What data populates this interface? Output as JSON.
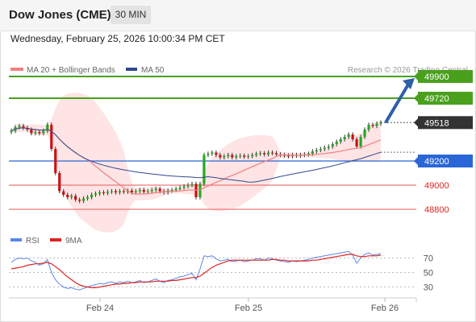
{
  "header": {
    "title": "Dow Jones (CME)",
    "timeframe": "30 MIN",
    "datetime": "Wednesday, February 25, 2026 10:00:34 PM CET"
  },
  "colors": {
    "candle_up": "#22aa22",
    "candle_down": "#cc1111",
    "ma20": "#f08080",
    "ma50": "#2e4a8c",
    "bands_fill": "#fdd9d9",
    "resistance": "#4aa01c",
    "pivot": "#2a66d6",
    "support": "#ee7777",
    "last_price_bg": "#333333",
    "rsi": "#5b87e6",
    "rsi_ma": "#dd2222",
    "arrow": "#2f5fa8"
  },
  "chart_data": [
    {
      "type": "candlestick",
      "title": "",
      "legend": [
        {
          "label": "MA 20 + Bollinger Bands",
          "color": "#f08080"
        },
        {
          "label": "MA 50",
          "color": "#2e4a8c"
        }
      ],
      "legend_position": "top-left",
      "credit": "Research © 2026 Trading Central",
      "x_ticks": [
        "Feb 24",
        "Feb 25",
        "Feb 26"
      ],
      "levels": [
        {
          "label": "49900",
          "value": 49900,
          "role": "resistance",
          "style": "box"
        },
        {
          "label": "49720",
          "value": 49720,
          "role": "resistance",
          "style": "box"
        },
        {
          "label": "49518",
          "value": 49518,
          "role": "last",
          "style": "box"
        },
        {
          "label": "49200",
          "value": 49200,
          "role": "pivot",
          "style": "box"
        },
        {
          "label": "49000",
          "value": 49000,
          "role": "support",
          "style": "text"
        },
        {
          "label": "48800",
          "value": 48800,
          "role": "support",
          "style": "text"
        }
      ],
      "ylim": [
        48700,
        50000
      ],
      "close": [
        49450,
        49480,
        49490,
        49475,
        49460,
        49430,
        49440,
        49430,
        49450,
        49500,
        49300,
        49100,
        48950,
        48920,
        48900,
        48910,
        48880,
        48870,
        48890,
        48900,
        48920,
        48930,
        48940,
        48935,
        48945,
        48950,
        48940,
        48950,
        48945,
        48955,
        48940,
        48950,
        48960,
        48945,
        48950,
        48960,
        48970,
        48950,
        48940,
        48955,
        48960,
        48970,
        48980,
        48990,
        49000,
        49010,
        48900,
        49010,
        49250,
        49260,
        49270,
        49250,
        49230,
        49240,
        49250,
        49230,
        49240,
        49245,
        49235,
        49240,
        49250,
        49260,
        49265,
        49255,
        49270,
        49265,
        49255,
        49250,
        49245,
        49240,
        49250,
        49245,
        49250,
        49255,
        49260,
        49280,
        49290,
        49300,
        49310,
        49320,
        49340,
        49360,
        49380,
        49400,
        49420,
        49380,
        49320,
        49400,
        49460,
        49500,
        49490,
        49510,
        49518
      ]
    },
    {
      "type": "line",
      "title": "",
      "legend": [
        {
          "label": "RSI",
          "color": "#5b87e6"
        },
        {
          "label": "9MA",
          "color": "#dd2222"
        }
      ],
      "legend_position": "top-left",
      "y_ticks": [
        "70",
        "50",
        "30"
      ],
      "ylim": [
        15,
        85
      ],
      "series": [
        {
          "name": "RSI",
          "values": [
            64,
            68,
            70,
            69,
            70,
            66,
            64,
            60,
            62,
            68,
            50,
            40,
            34,
            30,
            28,
            29,
            27,
            26,
            28,
            30,
            32,
            33,
            35,
            34,
            36,
            37,
            35,
            37,
            36,
            38,
            36,
            37,
            39,
            36,
            37,
            39,
            41,
            38,
            36,
            39,
            40,
            42,
            44,
            45,
            47,
            49,
            40,
            55,
            73,
            72,
            73,
            69,
            66,
            67,
            68,
            65,
            66,
            67,
            65,
            66,
            67,
            69,
            69,
            67,
            70,
            69,
            67,
            66,
            65,
            64,
            66,
            65,
            66,
            67,
            68,
            70,
            71,
            72,
            73,
            74,
            75,
            76,
            77,
            78,
            79,
            74,
            63,
            70,
            75,
            77,
            74,
            75,
            76
          ]
        },
        {
          "name": "9MA",
          "values": [
            55,
            56,
            57,
            58,
            60,
            61,
            62,
            62,
            63,
            64,
            62,
            58,
            54,
            49,
            44,
            40,
            36,
            33,
            31,
            30,
            29,
            29,
            30,
            31,
            32,
            33,
            34,
            34,
            35,
            35,
            36,
            36,
            37,
            37,
            37,
            37,
            38,
            38,
            38,
            38,
            39,
            39,
            40,
            41,
            42,
            43,
            43,
            45,
            49,
            53,
            57,
            60,
            62,
            64,
            66,
            67,
            67,
            67,
            67,
            67,
            67,
            67,
            67,
            67,
            67,
            68,
            68,
            67,
            67,
            66,
            66,
            66,
            66,
            66,
            66,
            67,
            67,
            68,
            69,
            70,
            71,
            72,
            73,
            74,
            75,
            75,
            73,
            72,
            72,
            73,
            73,
            73,
            74
          ]
        }
      ]
    }
  ]
}
